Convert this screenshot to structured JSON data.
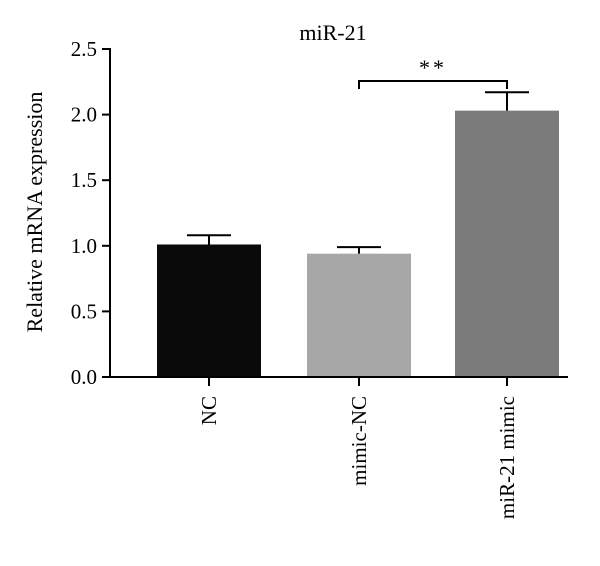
{
  "chart_data": {
    "type": "bar",
    "title": "miR-21",
    "xlabel": "",
    "ylabel": "Relative mRNA expression",
    "ylim": [
      0,
      2.5
    ],
    "yticks": [
      "0.0",
      "0.5",
      "1.0",
      "1.5",
      "2.0",
      "2.5"
    ],
    "categories": [
      "NC",
      "mimic-NC",
      "miR-21 mimic"
    ],
    "values": [
      1.01,
      0.94,
      2.03
    ],
    "errors": [
      0.07,
      0.05,
      0.14
    ],
    "colors": [
      "#0a0a0a",
      "#a7a7a7",
      "#7b7b7b"
    ],
    "significance": {
      "from_category": "mimic-NC",
      "to_category": "miR-21 mimic",
      "label": "**"
    },
    "grid": false,
    "legend": "none"
  }
}
